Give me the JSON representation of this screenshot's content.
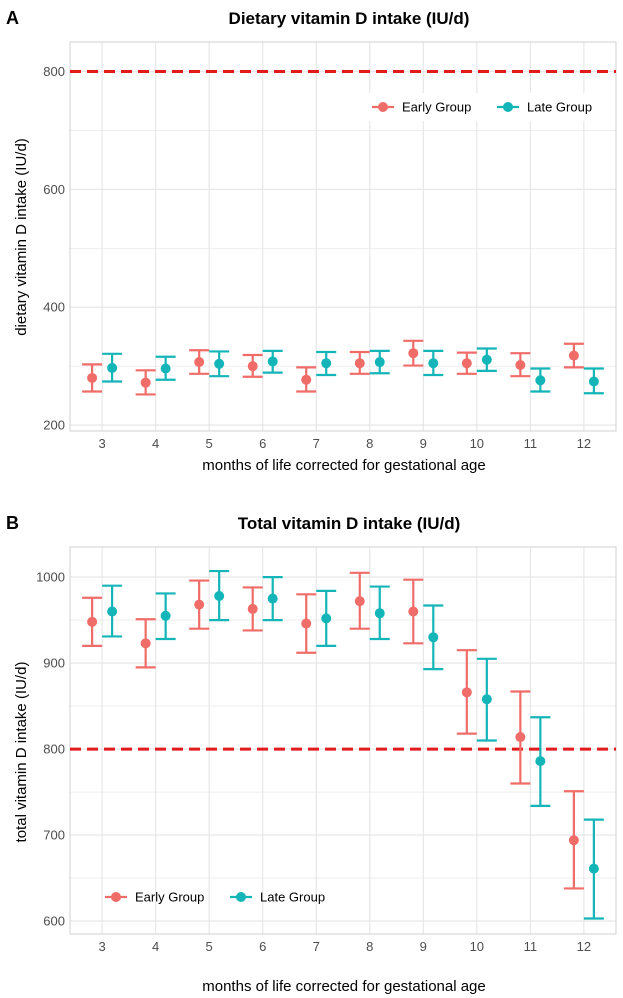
{
  "colors": {
    "early": "#F06C68",
    "late": "#14B5B8",
    "reference": "#E31A1C",
    "grid": "#E5E5E5",
    "frame": "#D0D0D0"
  },
  "chart_data": [
    {
      "panel": "A",
      "type": "scatter",
      "title": "Dietary vitamin D intake (IU/d)",
      "xlabel": "months of life corrected for gestational age",
      "ylabel": "dietary vitamin D intake (IU/d)",
      "categories": [
        "3",
        "4",
        "5",
        "6",
        "7",
        "8",
        "9",
        "10",
        "11",
        "12"
      ],
      "ylim": [
        190,
        850
      ],
      "yticks": [
        200,
        400,
        600,
        800
      ],
      "reference_line": 800,
      "grid": true,
      "legend_position": "top-right",
      "series": [
        {
          "name": "Early Group",
          "key": "early",
          "values": [
            280,
            272,
            307,
            300,
            277,
            305,
            322,
            305,
            302,
            318
          ],
          "lower": [
            257,
            252,
            287,
            282,
            257,
            287,
            301,
            287,
            283,
            298
          ],
          "upper": [
            303,
            293,
            327,
            319,
            298,
            324,
            343,
            323,
            322,
            338
          ]
        },
        {
          "name": "Late Group",
          "key": "late",
          "values": [
            297,
            296,
            304,
            308,
            305,
            307,
            305,
            311,
            276,
            274
          ],
          "lower": [
            274,
            277,
            283,
            289,
            285,
            288,
            285,
            292,
            257,
            254
          ],
          "upper": [
            321,
            316,
            325,
            326,
            324,
            326,
            326,
            330,
            296,
            296
          ]
        }
      ]
    },
    {
      "panel": "B",
      "type": "scatter",
      "title": "Total vitamin D intake (IU/d)",
      "xlabel": "months of life corrected for gestational age",
      "ylabel": "total vitamin D intake (IU/d)",
      "categories": [
        "3",
        "4",
        "5",
        "6",
        "7",
        "8",
        "9",
        "10",
        "11",
        "12"
      ],
      "ylim": [
        585,
        1035
      ],
      "yticks": [
        600,
        700,
        800,
        900,
        1000
      ],
      "reference_line": 800,
      "grid": true,
      "legend_position": "bottom-left",
      "series": [
        {
          "name": "Early Group",
          "key": "early",
          "values": [
            948,
            923,
            968,
            963,
            946,
            972,
            960,
            866,
            814,
            694
          ],
          "lower": [
            920,
            895,
            940,
            938,
            912,
            940,
            923,
            818,
            760,
            638
          ],
          "upper": [
            976,
            951,
            996,
            988,
            980,
            1005,
            997,
            915,
            867,
            751
          ]
        },
        {
          "name": "Late Group",
          "key": "late",
          "values": [
            960,
            955,
            978,
            975,
            952,
            958,
            930,
            858,
            786,
            661
          ],
          "lower": [
            931,
            928,
            950,
            950,
            920,
            928,
            893,
            810,
            734,
            603
          ],
          "upper": [
            990,
            981,
            1007,
            1000,
            984,
            989,
            967,
            905,
            837,
            718
          ]
        }
      ]
    }
  ]
}
